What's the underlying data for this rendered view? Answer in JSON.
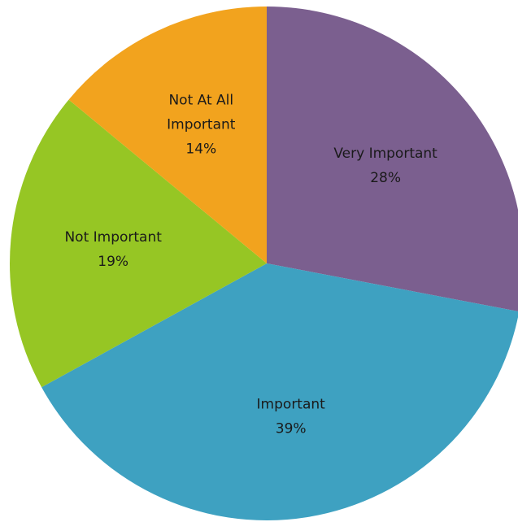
{
  "chart_data": {
    "type": "pie",
    "title": "",
    "start_angle_deg": 0,
    "direction": "clockwise",
    "slices": [
      {
        "label_lines": [
          "Very Important"
        ],
        "value": 28,
        "value_text": "28%",
        "color": "#7B5F8F"
      },
      {
        "label_lines": [
          "Important"
        ],
        "value": 39,
        "value_text": "39%",
        "color": "#3EA1C1"
      },
      {
        "label_lines": [
          "Not Important"
        ],
        "value": 19,
        "value_text": "19%",
        "color": "#96C624"
      },
      {
        "label_lines": [
          "Not At All",
          "Important"
        ],
        "value": 14,
        "value_text": "14%",
        "color": "#F2A31E"
      }
    ]
  }
}
